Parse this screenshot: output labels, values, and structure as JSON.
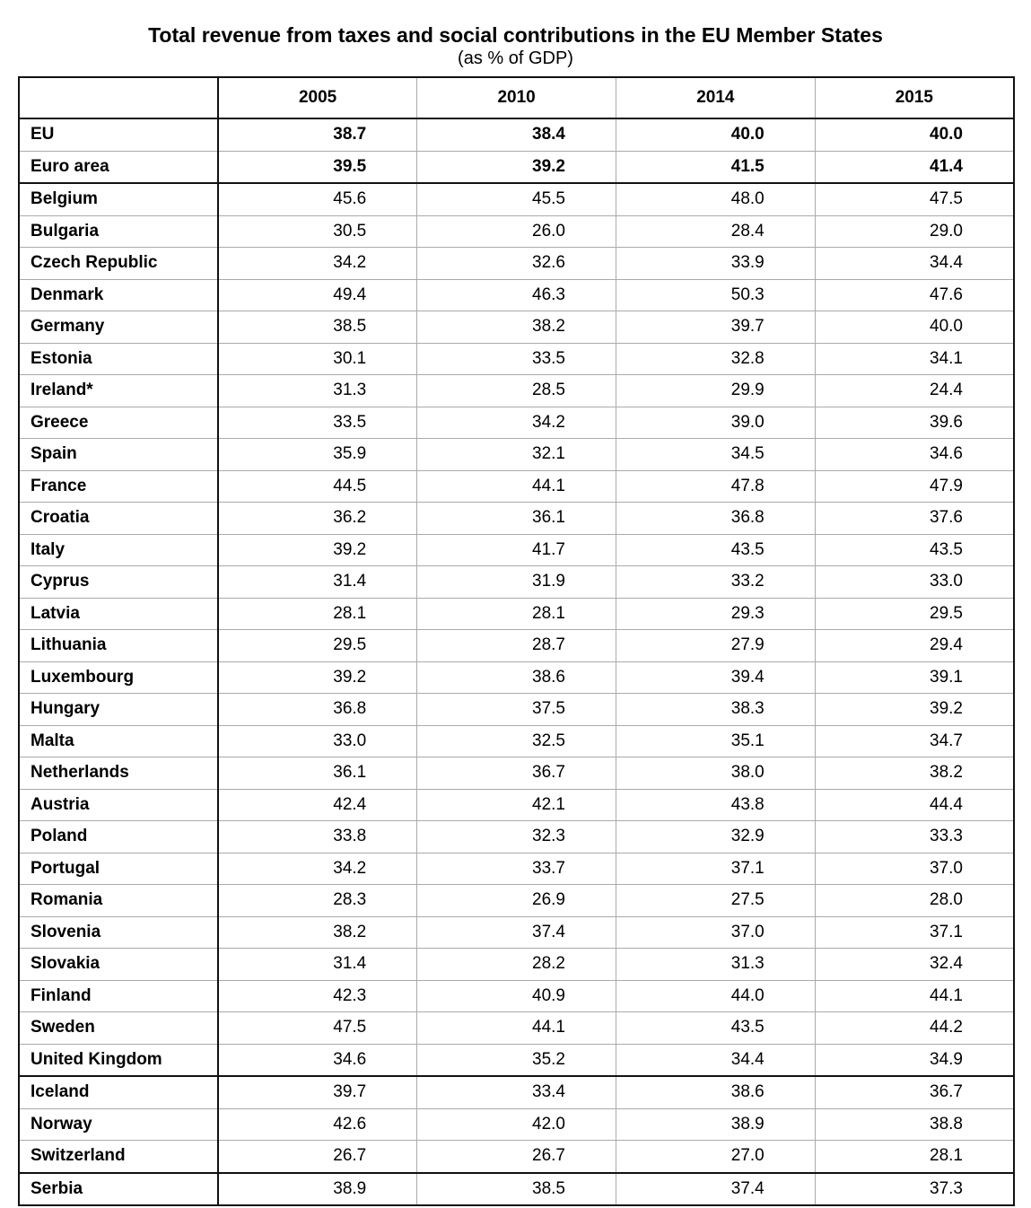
{
  "title": "Total revenue from taxes and social contributions in the EU Member States",
  "subtitle": "(as % of GDP)",
  "chart_data": {
    "type": "table",
    "title": "Total revenue from taxes and social contributions in the EU Member States",
    "subtitle": "(as % of GDP)",
    "columns": [
      "",
      "2005",
      "2010",
      "2014",
      "2015"
    ],
    "rows": [
      {
        "name": "EU",
        "values": [
          "38.7",
          "38.4",
          "40.0",
          "40.0"
        ],
        "bold": true
      },
      {
        "name": "Euro area",
        "values": [
          "39.5",
          "39.2",
          "41.5",
          "41.4"
        ],
        "bold": true,
        "sep": true
      },
      {
        "name": "Belgium",
        "values": [
          "45.6",
          "45.5",
          "48.0",
          "47.5"
        ]
      },
      {
        "name": "Bulgaria",
        "values": [
          "30.5",
          "26.0",
          "28.4",
          "29.0"
        ]
      },
      {
        "name": "Czech Republic",
        "values": [
          "34.2",
          "32.6",
          "33.9",
          "34.4"
        ]
      },
      {
        "name": "Denmark",
        "values": [
          "49.4",
          "46.3",
          "50.3",
          "47.6"
        ]
      },
      {
        "name": "Germany",
        "values": [
          "38.5",
          "38.2",
          "39.7",
          "40.0"
        ]
      },
      {
        "name": "Estonia",
        "values": [
          "30.1",
          "33.5",
          "32.8",
          "34.1"
        ]
      },
      {
        "name": "Ireland*",
        "values": [
          "31.3",
          "28.5",
          "29.9",
          "24.4"
        ]
      },
      {
        "name": "Greece",
        "values": [
          "33.5",
          "34.2",
          "39.0",
          "39.6"
        ]
      },
      {
        "name": "Spain",
        "values": [
          "35.9",
          "32.1",
          "34.5",
          "34.6"
        ]
      },
      {
        "name": "France",
        "values": [
          "44.5",
          "44.1",
          "47.8",
          "47.9"
        ]
      },
      {
        "name": "Croatia",
        "values": [
          "36.2",
          "36.1",
          "36.8",
          "37.6"
        ]
      },
      {
        "name": "Italy",
        "values": [
          "39.2",
          "41.7",
          "43.5",
          "43.5"
        ]
      },
      {
        "name": "Cyprus",
        "values": [
          "31.4",
          "31.9",
          "33.2",
          "33.0"
        ]
      },
      {
        "name": "Latvia",
        "values": [
          "28.1",
          "28.1",
          "29.3",
          "29.5"
        ]
      },
      {
        "name": "Lithuania",
        "values": [
          "29.5",
          "28.7",
          "27.9",
          "29.4"
        ]
      },
      {
        "name": "Luxembourg",
        "values": [
          "39.2",
          "38.6",
          "39.4",
          "39.1"
        ]
      },
      {
        "name": "Hungary",
        "values": [
          "36.8",
          "37.5",
          "38.3",
          "39.2"
        ]
      },
      {
        "name": "Malta",
        "values": [
          "33.0",
          "32.5",
          "35.1",
          "34.7"
        ]
      },
      {
        "name": "Netherlands",
        "values": [
          "36.1",
          "36.7",
          "38.0",
          "38.2"
        ]
      },
      {
        "name": "Austria",
        "values": [
          "42.4",
          "42.1",
          "43.8",
          "44.4"
        ]
      },
      {
        "name": "Poland",
        "values": [
          "33.8",
          "32.3",
          "32.9",
          "33.3"
        ]
      },
      {
        "name": "Portugal",
        "values": [
          "34.2",
          "33.7",
          "37.1",
          "37.0"
        ]
      },
      {
        "name": "Romania",
        "values": [
          "28.3",
          "26.9",
          "27.5",
          "28.0"
        ]
      },
      {
        "name": "Slovenia",
        "values": [
          "38.2",
          "37.4",
          "37.0",
          "37.1"
        ]
      },
      {
        "name": "Slovakia",
        "values": [
          "31.4",
          "28.2",
          "31.3",
          "32.4"
        ]
      },
      {
        "name": "Finland",
        "values": [
          "42.3",
          "40.9",
          "44.0",
          "44.1"
        ]
      },
      {
        "name": "Sweden",
        "values": [
          "47.5",
          "44.1",
          "43.5",
          "44.2"
        ]
      },
      {
        "name": "United Kingdom",
        "values": [
          "34.6",
          "35.2",
          "34.4",
          "34.9"
        ],
        "sep": true
      },
      {
        "name": "Iceland",
        "values": [
          "39.7",
          "33.4",
          "38.6",
          "36.7"
        ]
      },
      {
        "name": "Norway",
        "values": [
          "42.6",
          "42.0",
          "38.9",
          "38.8"
        ]
      },
      {
        "name": "Switzerland",
        "values": [
          "26.7",
          "26.7",
          "27.0",
          "28.1"
        ],
        "sep": true
      },
      {
        "name": "Serbia",
        "values": [
          "38.9",
          "38.5",
          "37.4",
          "37.3"
        ]
      }
    ]
  }
}
